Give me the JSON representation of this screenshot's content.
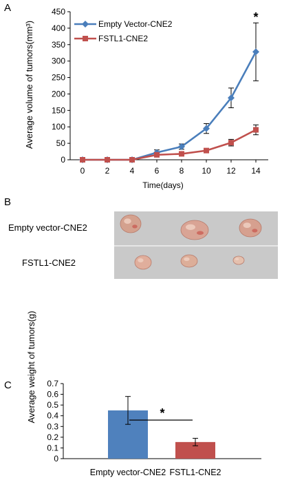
{
  "panel_labels": {
    "a": "A",
    "b": "B",
    "c": "C"
  },
  "photo": {
    "row_labels": [
      "Empty vector-CNE2",
      "FSTL1-CNE2"
    ],
    "tumors": [
      [
        {
          "color": "#d4a18e"
        },
        {
          "color": "#d9a495"
        },
        {
          "color": "#d6a08f"
        }
      ],
      [
        {
          "color": "#e0ae9c"
        },
        {
          "color": "#dcae99"
        },
        {
          "color": "#e4c0ae"
        }
      ]
    ],
    "background": "#c9c9c9"
  },
  "chart_data": [
    {
      "type": "line",
      "panel": "A",
      "xlabel": "Time(days)",
      "ylabel": "Average volume of tumors(mm³)",
      "x": [
        0,
        2,
        4,
        6,
        8,
        10,
        12,
        14
      ],
      "xlim": [
        -1,
        15
      ],
      "ylim": [
        0,
        450
      ],
      "yticks": [
        0,
        50,
        100,
        150,
        200,
        250,
        300,
        350,
        400,
        450
      ],
      "grid": false,
      "legend": "top-left",
      "annotation": {
        "text": "*",
        "x": 14
      },
      "series": [
        {
          "name": "Empty Vector-CNE2",
          "color": "#4a7ebb",
          "marker": "diamond",
          "values": [
            0,
            0,
            0,
            22,
            40,
            95,
            188,
            328
          ],
          "errors": [
            0,
            0,
            0,
            8,
            8,
            15,
            30,
            88
          ]
        },
        {
          "name": "FSTL1-CNE2",
          "color": "#c0504d",
          "marker": "square",
          "values": [
            0,
            0,
            0,
            15,
            18,
            28,
            52,
            91
          ],
          "errors": [
            0,
            0,
            0,
            4,
            3,
            4,
            10,
            15
          ]
        }
      ]
    },
    {
      "type": "bar",
      "panel": "C",
      "ylabel": "Average weight of tumors(g)",
      "categories": [
        "Empty vector-CNE2",
        "FSTL1-CNE2"
      ],
      "values": [
        0.45,
        0.155
      ],
      "errors": [
        0.13,
        0.035
      ],
      "colors": [
        "#4f81bd",
        "#c0504d"
      ],
      "ylim": [
        0,
        0.7
      ],
      "yticks": [
        0,
        0.1,
        0.2,
        0.3,
        0.4,
        0.5,
        0.6,
        0.7
      ],
      "grid": false,
      "annotation": {
        "text": "*"
      }
    }
  ]
}
